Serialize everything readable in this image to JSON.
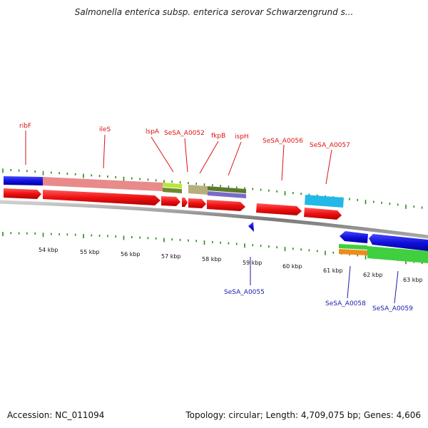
{
  "title": "Salmonella enterica subsp. enterica serovar Schwarzengrund s...",
  "footer": {
    "accession": "Accession: NC_011094",
    "topology": "Topology: circular; Length: 4,709,075 bp; Genes: 4,606"
  },
  "colors": {
    "forward_gene": "#ee1111",
    "reverse_gene": "#1111dd",
    "forward_label": "#dd1111",
    "reverse_label": "#1a1aaa",
    "backbone": "#8c8c8c",
    "tick": "#2a8a1a"
  },
  "scale": {
    "kbp_labels": [
      "54 kbp",
      "55 kbp",
      "56 kbp",
      "57 kbp",
      "58 kbp",
      "59 kbp",
      "60 kbp",
      "61 kbp",
      "62 kbp",
      "63 kbp"
    ]
  },
  "gene_labels": {
    "forward": [
      "ribF",
      "ileS",
      "lspA",
      "SeSA_A0052",
      "fkpB",
      "ispH",
      "SeSA_A0056",
      "SeSA_A0057"
    ],
    "reverse": [
      "SeSA_A0055",
      "SeSA_A0058",
      "SeSA_A0059"
    ]
  }
}
